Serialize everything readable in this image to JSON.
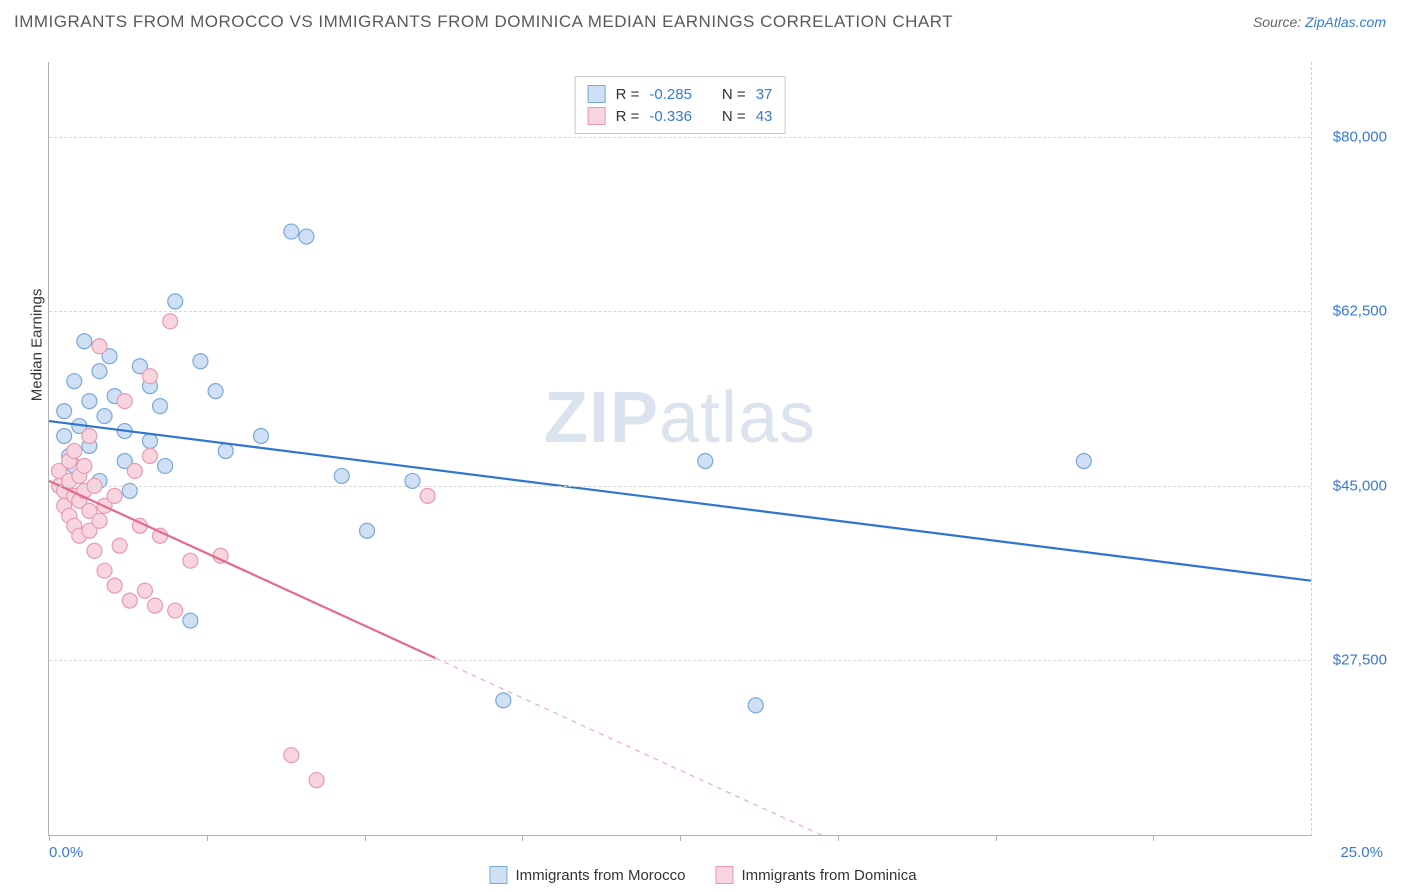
{
  "title": "IMMIGRANTS FROM MOROCCO VS IMMIGRANTS FROM DOMINICA MEDIAN EARNINGS CORRELATION CHART",
  "source_label": "Source:",
  "source_link": "ZipAtlas.com",
  "watermark": {
    "bold": "ZIP",
    "rest": "atlas"
  },
  "chart": {
    "type": "scatter",
    "xlim": [
      0,
      25
    ],
    "ylim": [
      10000,
      87500
    ],
    "x_ticks_pct": [
      0,
      12.5,
      25,
      37.5,
      50,
      62.5,
      75,
      87.5
    ],
    "x_tick_labels": {
      "left": "0.0%",
      "right": "25.0%"
    },
    "y_gridlines": [
      27500,
      45000,
      62500,
      80000
    ],
    "y_tick_labels": [
      "$27,500",
      "$45,000",
      "$62,500",
      "$80,000"
    ],
    "ylabel": "Median Earnings",
    "grid_color": "#d8d8d8",
    "axis_color": "#b0b0b0",
    "label_color": "#3878d8",
    "background_color": "#ffffff",
    "marker_radius": 7.5,
    "marker_stroke_width": 1.2,
    "line_width": 2.2
  },
  "series": [
    {
      "name": "Immigrants from Morocco",
      "fill": "#cfe0f4",
      "stroke": "#7aa7dc",
      "line_color": "#2e74d0",
      "R_label": "R =",
      "R": "-0.285",
      "N_label": "N =",
      "N": "37",
      "trend": {
        "x1": 0,
        "y1": 51500,
        "x2": 25,
        "y2": 35500,
        "solid_end_pct": 100
      },
      "points": [
        [
          0.3,
          50000
        ],
        [
          0.3,
          52500
        ],
        [
          0.4,
          48000
        ],
        [
          0.5,
          55500
        ],
        [
          0.5,
          47000
        ],
        [
          0.6,
          51000
        ],
        [
          0.7,
          59500
        ],
        [
          0.8,
          53500
        ],
        [
          0.8,
          49000
        ],
        [
          1.0,
          56500
        ],
        [
          1.0,
          45500
        ],
        [
          1.1,
          52000
        ],
        [
          1.2,
          58000
        ],
        [
          1.3,
          54000
        ],
        [
          1.5,
          47500
        ],
        [
          1.5,
          50500
        ],
        [
          1.6,
          44500
        ],
        [
          1.8,
          57000
        ],
        [
          2.0,
          55000
        ],
        [
          2.0,
          49500
        ],
        [
          2.2,
          53000
        ],
        [
          2.3,
          47000
        ],
        [
          2.5,
          63500
        ],
        [
          2.8,
          31500
        ],
        [
          3.0,
          57500
        ],
        [
          3.3,
          54500
        ],
        [
          3.5,
          48500
        ],
        [
          4.2,
          50000
        ],
        [
          4.8,
          70500
        ],
        [
          5.1,
          70000
        ],
        [
          5.8,
          46000
        ],
        [
          6.3,
          40500
        ],
        [
          7.2,
          45500
        ],
        [
          9.0,
          23500
        ],
        [
          13.0,
          47500
        ],
        [
          14.0,
          23000
        ],
        [
          20.5,
          47500
        ]
      ]
    },
    {
      "name": "Immigrants from Dominica",
      "fill": "#f8d4de",
      "stroke": "#e69bb0",
      "line_color": "#e56a8a",
      "R_label": "R =",
      "R": "-0.336",
      "N_label": "N =",
      "N": "43",
      "trend": {
        "x1": 0,
        "y1": 45500,
        "x2": 15.3,
        "y2": 10000,
        "solid_end_pct": 50
      },
      "points": [
        [
          0.2,
          45000
        ],
        [
          0.2,
          46500
        ],
        [
          0.3,
          43000
        ],
        [
          0.3,
          44500
        ],
        [
          0.4,
          47500
        ],
        [
          0.4,
          42000
        ],
        [
          0.4,
          45500
        ],
        [
          0.5,
          44000
        ],
        [
          0.5,
          41000
        ],
        [
          0.5,
          48500
        ],
        [
          0.6,
          46000
        ],
        [
          0.6,
          43500
        ],
        [
          0.6,
          40000
        ],
        [
          0.7,
          47000
        ],
        [
          0.7,
          44500
        ],
        [
          0.8,
          40500
        ],
        [
          0.8,
          50000
        ],
        [
          0.8,
          42500
        ],
        [
          0.9,
          38500
        ],
        [
          0.9,
          45000
        ],
        [
          1.0,
          59000
        ],
        [
          1.0,
          41500
        ],
        [
          1.1,
          43000
        ],
        [
          1.1,
          36500
        ],
        [
          1.3,
          44000
        ],
        [
          1.3,
          35000
        ],
        [
          1.4,
          39000
        ],
        [
          1.5,
          53500
        ],
        [
          1.6,
          33500
        ],
        [
          1.7,
          46500
        ],
        [
          1.8,
          41000
        ],
        [
          1.9,
          34500
        ],
        [
          2.0,
          56000
        ],
        [
          2.1,
          33000
        ],
        [
          2.2,
          40000
        ],
        [
          2.4,
          61500
        ],
        [
          2.5,
          32500
        ],
        [
          2.8,
          37500
        ],
        [
          3.4,
          38000
        ],
        [
          4.8,
          18000
        ],
        [
          5.3,
          15500
        ],
        [
          7.5,
          44000
        ],
        [
          2.0,
          48000
        ]
      ]
    }
  ],
  "legend_bottom": [
    {
      "label": "Immigrants from Morocco",
      "fill": "#cfe0f4",
      "stroke": "#7aa7dc"
    },
    {
      "label": "Immigrants from Dominica",
      "fill": "#f8d4de",
      "stroke": "#e69bb0"
    }
  ]
}
